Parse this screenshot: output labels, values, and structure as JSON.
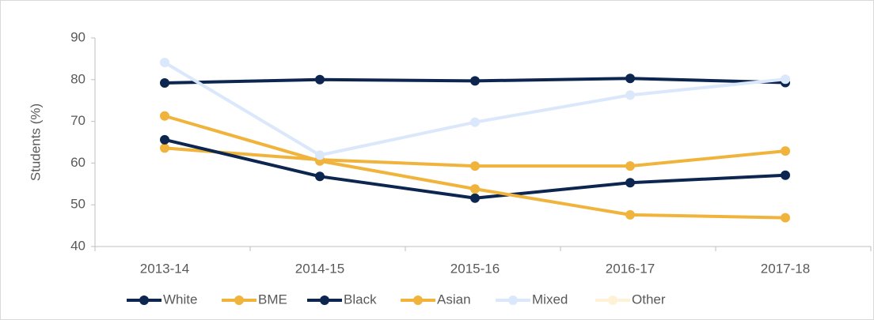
{
  "chart_data": {
    "type": "line",
    "categories": [
      "2013-14",
      "2014-15",
      "2015-16",
      "2016-17",
      "2017-18"
    ],
    "y_label": "Students (%)",
    "ylim": [
      40,
      90
    ],
    "yticks": [
      40,
      50,
      60,
      70,
      80,
      90
    ],
    "legend": "bottom",
    "series": [
      {
        "name": "White",
        "color": "#0c2650",
        "values": [
          79.2,
          80.0,
          79.7,
          80.3,
          79.3
        ]
      },
      {
        "name": "BME",
        "color": "#f0b43c",
        "values": [
          63.6,
          60.8,
          59.3,
          59.3,
          62.9
        ]
      },
      {
        "name": "Black",
        "color": "#0c2650",
        "values": [
          65.6,
          56.8,
          51.6,
          55.3,
          57.1
        ]
      },
      {
        "name": "Asian",
        "color": "#f0b43c",
        "values": [
          71.3,
          60.5,
          53.8,
          47.6,
          46.9
        ]
      },
      {
        "name": "Mixed",
        "color": "#dbe7fa",
        "values": [
          84.1,
          61.9,
          69.8,
          76.3,
          80.1
        ]
      },
      {
        "name": "Other",
        "color": "#fdf2d6",
        "values": [
          null,
          null,
          null,
          null,
          null
        ]
      }
    ]
  }
}
